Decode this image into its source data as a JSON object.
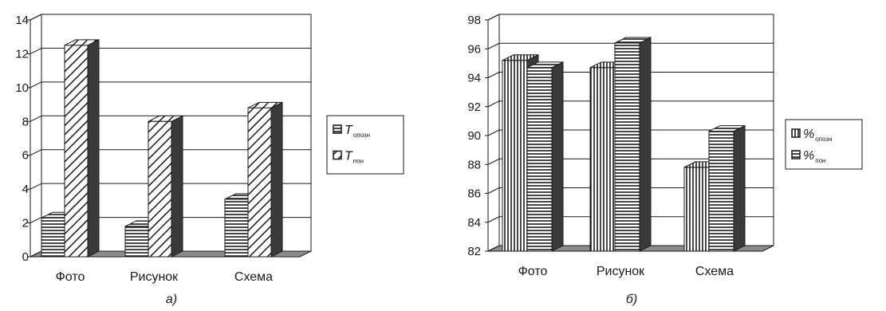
{
  "chart_data": [
    {
      "type": "bar",
      "caption": "а)",
      "categories": [
        "Фото",
        "Рисунок",
        "Схема"
      ],
      "ylim": [
        0,
        14
      ],
      "yticks": [
        "0",
        "2",
        "4",
        "6",
        "8",
        "10",
        "12",
        "14"
      ],
      "grid": true,
      "legend_position": "right",
      "series": [
        {
          "name": "T",
          "subscript": "опозн",
          "values": [
            2.3,
            1.8,
            3.4
          ],
          "pattern": "horizontal-stripes"
        },
        {
          "name": "T",
          "subscript": "пон",
          "values": [
            12.5,
            8.0,
            8.8
          ],
          "pattern": "diagonal-stripes"
        }
      ]
    },
    {
      "type": "bar",
      "caption": "б)",
      "categories": [
        "Фото",
        "Рисунок",
        "Схема"
      ],
      "ylim": [
        82,
        98
      ],
      "yticks": [
        "82",
        "84",
        "86",
        "88",
        "90",
        "92",
        "94",
        "96",
        "98"
      ],
      "grid": true,
      "legend_position": "right",
      "series": [
        {
          "name": "%",
          "subscript": "опозн",
          "values": [
            95.2,
            94.7,
            87.8
          ],
          "pattern": "vertical-stripes"
        },
        {
          "name": "%",
          "subscript": "пон",
          "values": [
            94.7,
            96.4,
            90.3
          ],
          "pattern": "horizontal-stripes"
        }
      ]
    }
  ]
}
